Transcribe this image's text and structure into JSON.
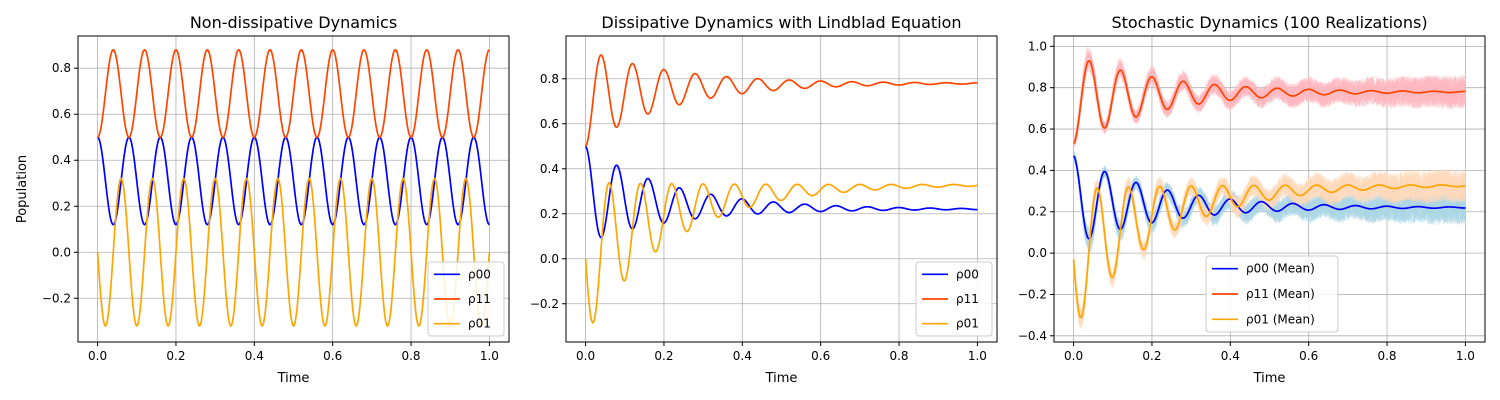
{
  "chart_data": [
    {
      "type": "line",
      "title": "Non-dissipative Dynamics",
      "xlabel": "Time",
      "ylabel": "Population",
      "xlim": [
        -0.05,
        1.05
      ],
      "ylim": [
        -0.39,
        0.94
      ],
      "xticks": [
        "0.0",
        "0.2",
        "0.4",
        "0.6",
        "0.8",
        "1.0"
      ],
      "yticks": [
        "−0.2",
        "0.0",
        "0.2",
        "0.4",
        "0.6",
        "0.8"
      ],
      "grid": true,
      "legend_position": "lower-right",
      "series": [
        {
          "name": "ρ00",
          "color": "#0000ff",
          "model": "cos2",
          "start": 0.5,
          "amplitude": 0.38,
          "center": 0.5,
          "frequency": 12.5
        },
        {
          "name": "ρ11",
          "color": "#ff4500",
          "model": "sin2",
          "start": 0.5,
          "amplitude": 0.38,
          "center": 0.5,
          "frequency": 12.5
        },
        {
          "name": "ρ01",
          "color": "#ffa500",
          "model": "coh",
          "start": 0.0,
          "amplitude": 0.32,
          "center": 0.0,
          "frequency": 12.5
        }
      ]
    },
    {
      "type": "line",
      "title": "Dissipative Dynamics with Lindblad Equation",
      "xlabel": "Time",
      "ylabel": "",
      "xlim": [
        -0.05,
        1.05
      ],
      "ylim": [
        -0.37,
        0.99
      ],
      "xticks": [
        "0.0",
        "0.2",
        "0.4",
        "0.6",
        "0.8",
        "1.0"
      ],
      "yticks": [
        "−0.2",
        "0.0",
        "0.2",
        "0.4",
        "0.6",
        "0.8"
      ],
      "grid": true,
      "legend_position": "lower-right",
      "series": [
        {
          "name": "ρ00",
          "color": "#0000ff",
          "model": "cos2",
          "start": 0.5,
          "amplitude": 0.43,
          "center": 0.22,
          "frequency": 12.5,
          "decay": 4.5
        },
        {
          "name": "ρ11",
          "color": "#ff4500",
          "model": "sin2",
          "start": 0.5,
          "amplitude": 0.43,
          "center": 0.78,
          "frequency": 12.5,
          "decay": 4.5
        },
        {
          "name": "ρ01",
          "color": "#ffa500",
          "model": "coh",
          "start": 0.0,
          "amplitude": 0.34,
          "center": 0.33,
          "frequency": 12.5,
          "decay": 4.5
        }
      ]
    },
    {
      "type": "line",
      "title": "Stochastic Dynamics (100 Realizations)",
      "xlabel": "Time",
      "ylabel": "",
      "xlim": [
        -0.05,
        1.05
      ],
      "ylim": [
        -0.43,
        1.05
      ],
      "xticks": [
        "0.0",
        "0.2",
        "0.4",
        "0.6",
        "0.8",
        "1.0"
      ],
      "yticks": [
        "−0.4",
        "−0.2",
        "0.0",
        "0.2",
        "0.4",
        "0.6",
        "0.8",
        "1.0"
      ],
      "grid": true,
      "legend_position": "lower-center",
      "realizations": 100,
      "realization_colors": [
        "#add8e6",
        "#ffb6c1",
        "#ffdab9"
      ],
      "series": [
        {
          "name": "ρ00 (Mean)",
          "color": "#0000ff",
          "model": "cos2",
          "start": 0.47,
          "amplitude": 0.43,
          "center": 0.22,
          "frequency": 12.5,
          "decay": 4.5
        },
        {
          "name": "ρ11 (Mean)",
          "color": "#ff4500",
          "model": "sin2",
          "start": 0.53,
          "amplitude": 0.43,
          "center": 0.78,
          "frequency": 12.5,
          "decay": 4.5
        },
        {
          "name": "ρ01 (Mean)",
          "color": "#ffa500",
          "model": "coh",
          "start": -0.03,
          "amplitude": 0.34,
          "center": 0.33,
          "frequency": 12.5,
          "decay": 4.5
        }
      ]
    }
  ]
}
